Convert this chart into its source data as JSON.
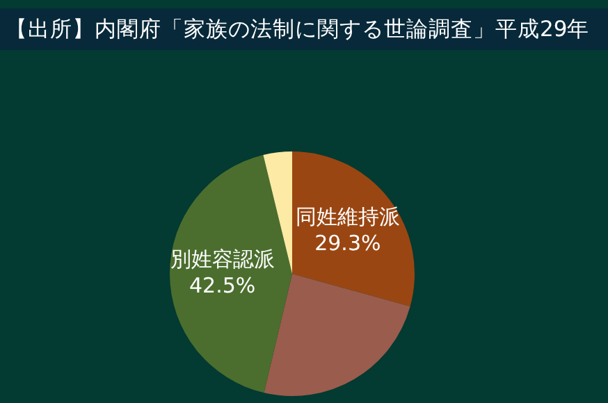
{
  "chart_data": {
    "type": "pie",
    "title": "【出所】内閣府「家族の法制に関する世論調査」平成29年",
    "categories": [
      "同姓維持派",
      null,
      "別姓容認派",
      null
    ],
    "values": [
      29.3,
      24.4,
      42.5,
      3.8
    ],
    "colors": [
      "#9a4612",
      "#9a5c4c",
      "#4b6e2e",
      "#fdeaa4"
    ],
    "value_labels": [
      "29.3%",
      null,
      "42.5%",
      null
    ],
    "legend": false
  }
}
